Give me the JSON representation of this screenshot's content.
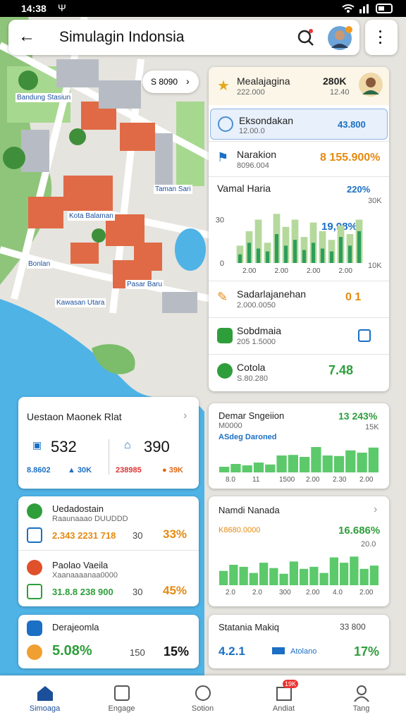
{
  "status_bar": {
    "time": "14:38",
    "signal_icon": "Ψ"
  },
  "app_bar": {
    "title": "Simulagin Indonsia"
  },
  "map": {
    "price_chip": "S 8090",
    "labels": [
      "Bandung Stasiun",
      "Kota Balaman",
      "Taman Sari",
      "Bonlan",
      "Kawasan Utara",
      "Pasar Baru"
    ]
  },
  "panel": {
    "header": {
      "title": "Mealajagina",
      "subtitle": "222.000",
      "value": "280K",
      "sub_value": "12.40"
    },
    "rows": [
      {
        "title": "Eksondakan",
        "subtitle": "12.00.0",
        "value": "43.800"
      },
      {
        "title": "Narakion",
        "subtitle": "8096.004",
        "value": "8 155.900%"
      }
    ],
    "chart": {
      "title": "Vamal Haria",
      "change": "220%",
      "value_label": "19,98%",
      "right_labels": [
        "30K",
        "10K"
      ],
      "x_labels": [
        "2.00",
        "2.00",
        "2.00",
        "2.00"
      ],
      "ylim": [
        0,
        40
      ],
      "yticks": [
        0,
        30
      ],
      "series": [
        {
          "color": "#b5d99c",
          "values": [
            12,
            22,
            30,
            14,
            34,
            25,
            30,
            18,
            28,
            22,
            16,
            26,
            20,
            30
          ]
        },
        {
          "color": "#2e9e5b",
          "values": [
            6,
            14,
            10,
            8,
            20,
            12,
            16,
            9,
            14,
            10,
            8,
            18,
            12,
            22
          ]
        }
      ]
    },
    "rows2": [
      {
        "title": "Sadarlajanehan",
        "subtitle": "2.000.0050",
        "value": "0 1"
      },
      {
        "title": "Sobdmaia",
        "subtitle": "205 1.5000",
        "value": ""
      },
      {
        "title": "Cotola",
        "subtitle": "S.80.280",
        "value": "7.48"
      }
    ]
  },
  "cards": {
    "stats": {
      "title": "Uestaon Maonek Rlat",
      "items": [
        {
          "value": "532",
          "sub": "8.8602",
          "change": "▲ 30K"
        },
        {
          "value": "390",
          "sub": "238985",
          "change": "● 39K"
        }
      ]
    },
    "chart1": {
      "title": "Demar Sngeiion",
      "change": "13 243%",
      "subtitle": "M0000",
      "right": "15K",
      "caption": "ASdeg Daroned",
      "ylim": [
        0,
        100
      ],
      "color": "#5cc96b",
      "values": [
        20,
        30,
        25,
        35,
        28,
        60,
        62,
        55,
        90,
        60,
        58,
        78,
        70,
        88
      ],
      "x_labels": [
        "8.0",
        "11",
        "1500",
        "2.00",
        "2.30",
        "2.00"
      ]
    },
    "list": [
      {
        "title": "Uedadostain",
        "subtitle": "Raaunaaao DUUDDD",
        "value": "2.343 2231 718",
        "mid": "30",
        "percent": "33%"
      },
      {
        "title": "Paolao Vaeila",
        "subtitle": "Xaanaaaanaa0000",
        "value": "31.8.8 238 900",
        "mid": "30",
        "percent": "45%"
      }
    ],
    "chart2": {
      "title": "Namdi Nanada",
      "subtitle": "K8680.0000",
      "change": "16.686%",
      "right": "20.0",
      "ylim": [
        0,
        100
      ],
      "color": "#5cc96b",
      "values": [
        35,
        50,
        45,
        30,
        55,
        42,
        28,
        58,
        40,
        45,
        30,
        68,
        55,
        70,
        40,
        48
      ],
      "x_labels": [
        "2.0",
        "2.0",
        "300",
        "2.00",
        "4.0",
        "2.00"
      ]
    },
    "small1": {
      "title": "Derajeomla",
      "value": "5.08%",
      "mid": "150",
      "percent": "15%"
    },
    "small2": {
      "title": "Statania Makiq",
      "right": "33 800",
      "value": "4.2.1",
      "label": "Atolano",
      "percent": "17%"
    }
  },
  "bottom_nav": {
    "items": [
      "Simoaga",
      "Engage",
      "Sotion",
      "Andiat",
      "Tang"
    ],
    "badge": "19K"
  }
}
